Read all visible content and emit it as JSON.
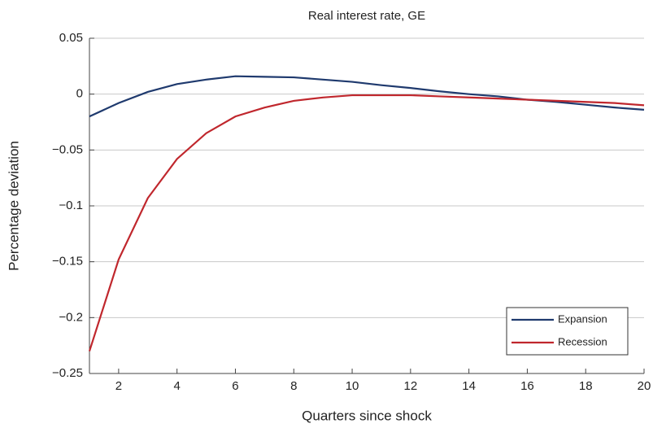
{
  "chart_data": {
    "type": "line",
    "title": "Real interest rate, GE",
    "x_label": "Quarters since shock",
    "y_label": "Percentage deviation",
    "x": [
      1,
      2,
      3,
      4,
      5,
      6,
      7,
      8,
      9,
      10,
      11,
      12,
      13,
      14,
      15,
      16,
      17,
      18,
      19,
      20
    ],
    "series": [
      {
        "name": "Expansion",
        "color": "#1f3a6e",
        "values": [
          -0.02,
          -0.008,
          0.002,
          0.009,
          0.013,
          0.016,
          0.0155,
          0.015,
          0.013,
          0.011,
          0.008,
          0.0055,
          0.0025,
          0,
          -0.002,
          -0.005,
          -0.007,
          -0.0095,
          -0.012,
          -0.014
        ]
      },
      {
        "name": "Recession",
        "color": "#c0272d",
        "values": [
          -0.23,
          -0.148,
          -0.093,
          -0.058,
          -0.035,
          -0.02,
          -0.012,
          -0.006,
          -0.003,
          -0.001,
          -0.001,
          -0.001,
          -0.002,
          -0.003,
          -0.004,
          -0.005,
          -0.006,
          -0.007,
          -0.008,
          -0.01
        ]
      }
    ],
    "xlim": [
      1,
      20
    ],
    "xticks": [
      2,
      4,
      6,
      8,
      10,
      12,
      14,
      16,
      18,
      20
    ],
    "ylim": [
      -0.25,
      0.05
    ],
    "yticks": [
      0.05,
      0,
      {
        "value": -0.05,
        "label": "−0.05"
      },
      {
        "value": -0.1,
        "label": "−0.1"
      },
      {
        "value": -0.15,
        "label": "−0.15"
      },
      {
        "value": -0.2,
        "label": "−0.2"
      },
      {
        "value": -0.25,
        "label": "−0.25"
      }
    ],
    "grid": true,
    "legend": "lower right"
  }
}
